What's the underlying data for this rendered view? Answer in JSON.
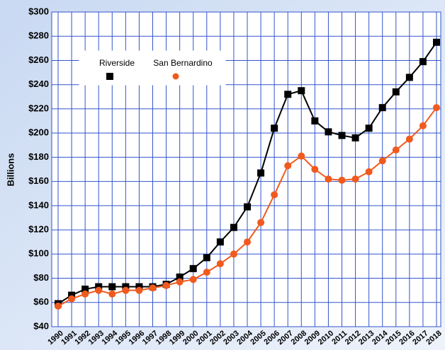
{
  "chart_data": {
    "type": "line",
    "y_label": "Billions",
    "categories": [
      "1990",
      "1991",
      "1992",
      "1993",
      "1994",
      "1995",
      "1996",
      "1997",
      "1998",
      "1999",
      "2000",
      "2001",
      "2002",
      "2003",
      "2004",
      "2005",
      "2006",
      "2007",
      "2008",
      "2009",
      "2010",
      "2011",
      "2012",
      "2013",
      "2014",
      "2015",
      "2016",
      "2017",
      "2018"
    ],
    "series": [
      {
        "name": "Riverside",
        "color": "#000000",
        "marker": "square",
        "values": [
          59,
          66,
          71,
          73,
          73,
          73,
          73,
          73,
          75,
          81,
          88,
          97,
          110,
          122,
          139,
          167,
          204,
          232,
          235,
          210,
          201,
          198,
          196,
          204,
          221,
          234,
          246,
          259,
          275
        ]
      },
      {
        "name": "San Bernardino",
        "color": "#f05a1e",
        "marker": "circle",
        "values": [
          57,
          63,
          67,
          70,
          67,
          70,
          70,
          72,
          74,
          77,
          79,
          85,
          92,
          100,
          110,
          126,
          149,
          173,
          181,
          170,
          162,
          161,
          162,
          168,
          177,
          186,
          195,
          206,
          221
        ]
      }
    ],
    "ylim": [
      40,
      300
    ],
    "yticks": [
      {
        "value": 40,
        "label": "$40"
      },
      {
        "value": 60,
        "label": "$60"
      },
      {
        "value": 80,
        "label": "$80"
      },
      {
        "value": 100,
        "label": "$100"
      },
      {
        "value": 120,
        "label": "$120"
      },
      {
        "value": 140,
        "label": "$140"
      },
      {
        "value": 160,
        "label": "$160"
      },
      {
        "value": 180,
        "label": "$180"
      },
      {
        "value": 200,
        "label": "$200"
      },
      {
        "value": 220,
        "label": "$220"
      },
      {
        "value": 240,
        "label": "$240"
      },
      {
        "value": 260,
        "label": "$260"
      },
      {
        "value": 280,
        "label": "$280"
      },
      {
        "value": 300,
        "label": "$300"
      }
    ],
    "grid": true
  }
}
